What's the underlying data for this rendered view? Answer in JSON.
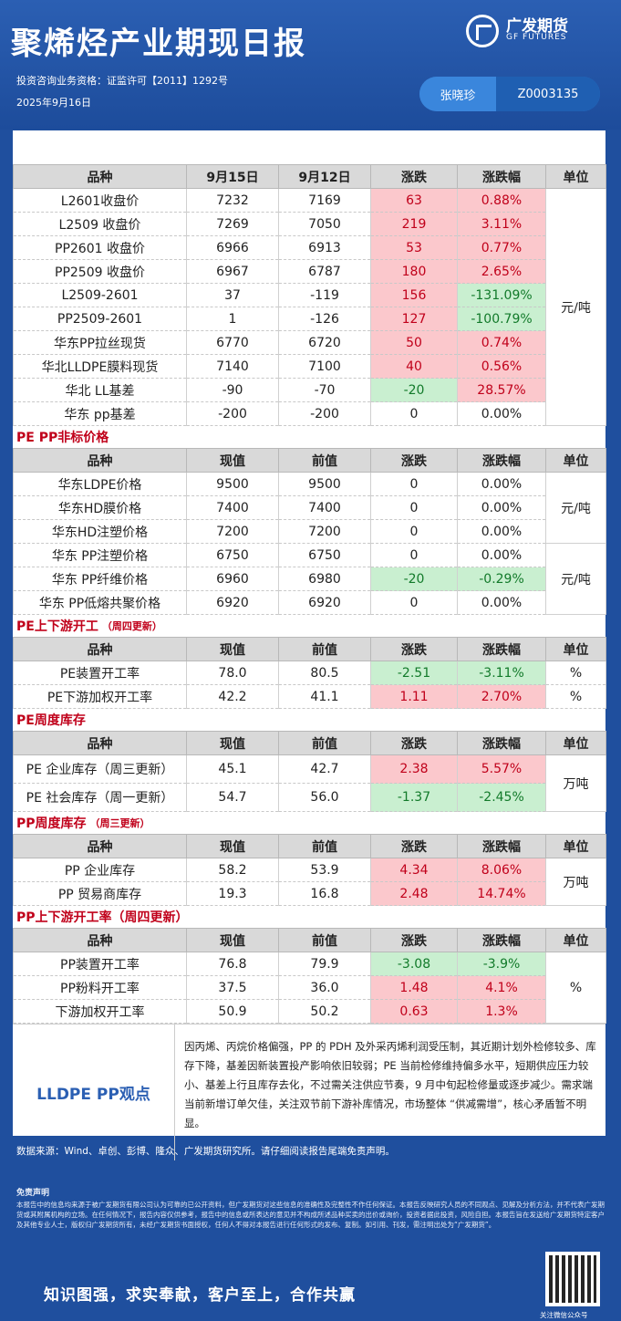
{
  "header": {
    "title": "聚烯烃产业期现日报",
    "brand_cn": "广发期货",
    "brand_en": "GF FUTURES",
    "license": "投资咨询业务资格：证监许可【2011】1292号",
    "date": "2025年9月16日",
    "analyst_name": "张晓珍",
    "analyst_code": "Z0003135"
  },
  "table1": {
    "headers": [
      "品种",
      "9月15日",
      "9月12日",
      "涨跌",
      "涨跌幅",
      "单位"
    ],
    "unit": "元/吨",
    "rows": [
      [
        "L2601收盘价",
        "7232",
        "7169",
        "63",
        "0.88%"
      ],
      [
        "L2509 收盘价",
        "7269",
        "7050",
        "219",
        "3.11%"
      ],
      [
        "PP2601 收盘价",
        "6966",
        "6913",
        "53",
        "0.77%"
      ],
      [
        "PP2509 收盘价",
        "6967",
        "6787",
        "180",
        "2.65%"
      ],
      [
        "L2509-2601",
        "37",
        "-119",
        "156",
        "-131.09%"
      ],
      [
        "PP2509-2601",
        "1",
        "-126",
        "127",
        "-100.79%"
      ],
      [
        "华东PP拉丝现货",
        "6770",
        "6720",
        "50",
        "0.74%"
      ],
      [
        "华北LLDPE膜料现货",
        "7140",
        "7100",
        "40",
        "0.56%"
      ],
      [
        "华北 LL基差",
        "-90",
        "-70",
        "-20",
        "28.57%"
      ],
      [
        "华东 pp基差",
        "-200",
        "-200",
        "0",
        "0.00%"
      ]
    ]
  },
  "section2": {
    "title": "PE PP非标价格",
    "headers": [
      "品种",
      "现值",
      "前值",
      "涨跌",
      "涨跌幅",
      "单位"
    ],
    "unit_a": "元/吨",
    "unit_b": "元/吨",
    "rows": [
      [
        "华东LDPE价格",
        "9500",
        "9500",
        "0",
        "0.00%"
      ],
      [
        "华东HD膜价格",
        "7400",
        "7400",
        "0",
        "0.00%"
      ],
      [
        "华东HD注塑价格",
        "7200",
        "7200",
        "0",
        "0.00%"
      ],
      [
        "华东 PP注塑价格",
        "6750",
        "6750",
        "0",
        "0.00%"
      ],
      [
        "华东 PP纤维价格",
        "6960",
        "6980",
        "-20",
        "-0.29%"
      ],
      [
        "华东 PP低熔共聚价格",
        "6920",
        "6920",
        "0",
        "0.00%"
      ]
    ]
  },
  "section3": {
    "title": "PE上下游开工",
    "note": "（周四更新）",
    "headers": [
      "品种",
      "现值",
      "前值",
      "涨跌",
      "涨跌幅",
      "单位"
    ],
    "rows": [
      [
        "PE装置开工率",
        "78.0",
        "80.5",
        "-2.51",
        "-3.11%",
        "%"
      ],
      [
        "PE下游加权开工率",
        "42.2",
        "41.1",
        "1.11",
        "2.70%",
        "%"
      ]
    ]
  },
  "section4": {
    "title": "PE周度库存",
    "headers": [
      "品种",
      "现值",
      "前值",
      "涨跌",
      "涨跌幅",
      "单位"
    ],
    "unit": "万吨",
    "rows": [
      [
        "PE 企业库存（周三更新）",
        "45.1",
        "42.7",
        "2.38",
        "5.57%"
      ],
      [
        "PE 社会库存（周一更新）",
        "54.7",
        "56.0",
        "-1.37",
        "-2.45%"
      ]
    ]
  },
  "section5": {
    "title": "PP周度库存",
    "note": "（周三更新）",
    "headers": [
      "品种",
      "现值",
      "前值",
      "涨跌",
      "涨跌幅",
      "单位"
    ],
    "unit": "万吨",
    "rows": [
      [
        "PP 企业库存",
        "58.2",
        "53.9",
        "4.34",
        "8.06%"
      ],
      [
        "PP 贸易商库存",
        "19.3",
        "16.8",
        "2.48",
        "14.74%"
      ]
    ]
  },
  "section6": {
    "title": "PP上下游开工率（周四更新）",
    "headers": [
      "品种",
      "现值",
      "前值",
      "涨跌",
      "涨跌幅",
      "单位"
    ],
    "unit": "%",
    "rows": [
      [
        "PP装置开工率",
        "76.8",
        "79.9",
        "-3.08",
        "-3.9%"
      ],
      [
        "PP粉料开工率",
        "37.5",
        "36.0",
        "1.48",
        "4.1%"
      ],
      [
        "下游加权开工率",
        "50.9",
        "50.2",
        "0.63",
        "1.3%"
      ]
    ]
  },
  "view": {
    "title": "LLDPE  PP观点",
    "text": "因丙烯、丙烷价格偏强，PP 的 PDH 及外采丙烯利润受压制，其近期计划外检修较多、库存下降，基差因新装置投产影响依旧较弱；PE 当前检修维持偏多水平，短期供应压力较小、基差上行且库存去化，不过需关注供应节奏，9 月中旬起检修量或逐步减少。需求端当前新增订单欠佳，关注双节前下游补库情况，市场整体 “供减需增”，核心矛盾暂不明显。"
  },
  "footer": {
    "source": "数据来源：Wind、卓创、彭博、隆众、广发期货研究所。请仔细阅读报告尾端免责声明。",
    "disclaimer_title": "免责声明",
    "disclaimer_text": "本报告中的信息均来源于被广发期货有限公司认为可靠的已公开资料，但广发期货对这些信息的准确性及完整性不作任何保证。本报告反映研究人员的不同观点、见解及分析方法，并不代表广发期货或其附属机构的立场。在任何情况下，报告内容仅供参考，报告中的信息或所表达的意见并不构成所述品种买卖的出价或询价，投资者据此投资，风险自担。本报告旨在发送给广发期货特定客户及其他专业人士，版权归广发期货所有，未经广发期货书面授权，任何人不得对本报告进行任何形式的发布、复制。如引用、刊发，需注明出处为“广发期货”。",
    "slogan": "知识图强，求实奉献，客户至上，合作共赢",
    "qr_label": "关注微信公众号"
  }
}
